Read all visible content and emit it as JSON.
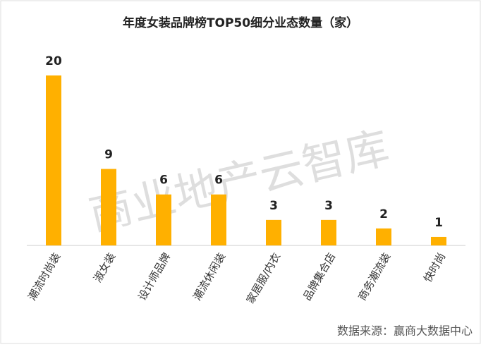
{
  "chart_data": {
    "type": "bar",
    "title": "年度女装品牌榜TOP50细分业态数量（家）",
    "categories": [
      "潮流时尚装",
      "淑女装",
      "设计师品牌",
      "潮流休闲装",
      "家居服/内衣",
      "品牌集合店",
      "商务潮流装",
      "快时尚"
    ],
    "values": [
      20,
      9,
      6,
      6,
      3,
      3,
      2,
      1
    ],
    "color": "#ffb000",
    "watermark": "商业地产云智库",
    "source": "数据来源：赢商大数据中心"
  }
}
